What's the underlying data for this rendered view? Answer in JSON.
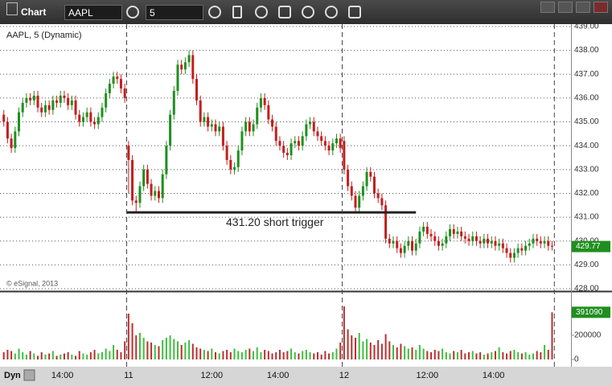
{
  "toolbar": {
    "title": "Chart",
    "symbol": "AAPL",
    "interval": "5"
  },
  "footer": {
    "mode": "Dyn"
  },
  "chart_data": [
    {
      "type": "candlestick",
      "title": "AAPL, 5 (Dynamic)",
      "credit": "© eSignal, 2013",
      "up_color": "#1f8f1f",
      "down_color": "#c41e1e",
      "xlim": [
        -1,
        150
      ],
      "ylim": [
        427.9,
        439.1
      ],
      "grid": true,
      "yticks": [
        {
          "value": 439,
          "label": "439.00"
        },
        {
          "value": 438,
          "label": "438.00"
        },
        {
          "value": 437,
          "label": "437.00"
        },
        {
          "value": 436,
          "label": "436.00"
        },
        {
          "value": 435,
          "label": "435.00"
        },
        {
          "value": 434,
          "label": "434.00"
        },
        {
          "value": 433,
          "label": "433.00"
        },
        {
          "value": 432,
          "label": "432.00"
        },
        {
          "value": 431,
          "label": "431.00"
        },
        {
          "value": 430,
          "label": "430.00"
        },
        {
          "value": 429,
          "label": "429.00"
        },
        {
          "value": 428,
          "label": "428.00"
        }
      ],
      "annotations": [
        {
          "text": "431.20 short trigger",
          "value": 431.2
        }
      ],
      "open": [
        435.3,
        435.0,
        434.3,
        433.9,
        434.6,
        435.4,
        435.8,
        436.0,
        435.9,
        436.1,
        435.6,
        435.4,
        435.7,
        435.5,
        435.9,
        435.8,
        436.1,
        436.0,
        435.7,
        435.9,
        435.3,
        435.0,
        435.2,
        435.4,
        435.0,
        434.9,
        435.2,
        435.6,
        436.2,
        436.6,
        436.9,
        436.8,
        436.4,
        434.0,
        433.4,
        431.7,
        431.6,
        432.3,
        433.0,
        432.4,
        431.9,
        432.1,
        431.8,
        432.8,
        434.0,
        435.3,
        436.3,
        437.4,
        437.2,
        437.5,
        437.8,
        436.8,
        435.9,
        435.0,
        435.2,
        434.8,
        434.9,
        434.6,
        434.8,
        434.0,
        433.4,
        433.0,
        433.1,
        433.8,
        434.6,
        435.0,
        434.6,
        434.9,
        435.6,
        436.0,
        435.7,
        435.1,
        434.8,
        434.2,
        434.0,
        433.7,
        433.6,
        434.1,
        434.2,
        434.0,
        434.4,
        434.9,
        435.0,
        434.6,
        434.4,
        434.2,
        434.0,
        433.8,
        434.1,
        434.3,
        434.2,
        433.0,
        432.3,
        431.9,
        431.4,
        431.9,
        432.3,
        432.9,
        432.7,
        432.0,
        431.8,
        431.5,
        430.1,
        429.9,
        430.0,
        429.7,
        429.5,
        429.8,
        430.0,
        429.6,
        429.9,
        430.4,
        430.6,
        430.3,
        430.2,
        430.0,
        429.8,
        429.9,
        430.2,
        430.5,
        430.3,
        430.4,
        430.2,
        430.1,
        430.0,
        430.2,
        430.0,
        429.9,
        430.1,
        429.9,
        430.0,
        429.8,
        429.9,
        429.7,
        429.5,
        429.3,
        429.5,
        429.7,
        429.6,
        429.8,
        429.9,
        430.1,
        430.0,
        429.9,
        430.0,
        429.8
      ],
      "high": [
        435.5,
        435.2,
        434.5,
        434.8,
        435.6,
        436.0,
        436.2,
        436.2,
        436.3,
        436.3,
        435.8,
        435.9,
        435.9,
        436.1,
        436.1,
        436.3,
        436.3,
        436.2,
        436.1,
        436.1,
        435.5,
        435.4,
        435.6,
        435.6,
        435.2,
        435.4,
        435.8,
        436.4,
        436.8,
        437.1,
        437.1,
        437.0,
        436.6,
        434.2,
        433.6,
        431.9,
        432.5,
        433.2,
        433.2,
        432.6,
        432.3,
        432.3,
        433.0,
        434.2,
        435.5,
        436.5,
        437.6,
        437.6,
        437.7,
        438.0,
        438.0,
        437.0,
        436.1,
        435.4,
        435.4,
        435.1,
        435.1,
        435.0,
        435.0,
        434.2,
        433.6,
        433.3,
        434.0,
        434.8,
        435.2,
        435.2,
        435.1,
        435.8,
        436.2,
        436.2,
        435.9,
        435.3,
        435.0,
        434.4,
        434.2,
        433.9,
        434.3,
        434.4,
        434.4,
        434.6,
        435.1,
        435.2,
        435.2,
        434.8,
        434.6,
        434.4,
        434.2,
        434.3,
        434.5,
        434.5,
        434.4,
        433.2,
        432.5,
        432.1,
        432.1,
        432.5,
        433.1,
        433.1,
        432.9,
        432.2,
        432.0,
        431.7,
        430.3,
        430.2,
        430.2,
        429.9,
        430.0,
        430.2,
        430.2,
        430.1,
        430.6,
        430.8,
        430.8,
        430.5,
        430.4,
        430.2,
        430.1,
        430.4,
        430.7,
        430.7,
        430.6,
        430.6,
        430.4,
        430.3,
        430.4,
        430.4,
        430.2,
        430.3,
        430.3,
        430.2,
        430.2,
        430.1,
        430.1,
        429.9,
        429.7,
        429.7,
        429.9,
        429.9,
        430.0,
        430.1,
        430.3,
        430.3,
        430.2,
        430.2,
        430.2,
        430.0
      ],
      "low": [
        434.8,
        434.1,
        433.7,
        433.7,
        434.4,
        435.2,
        435.6,
        435.7,
        435.7,
        435.4,
        435.2,
        435.2,
        435.3,
        435.3,
        435.6,
        435.6,
        435.8,
        435.5,
        435.5,
        435.1,
        434.8,
        434.8,
        435.0,
        434.8,
        434.7,
        434.7,
        435.0,
        435.4,
        436.0,
        436.4,
        436.6,
        436.2,
        435.8,
        432.0,
        431.5,
        431.2,
        431.4,
        432.1,
        432.2,
        431.7,
        431.7,
        431.6,
        431.6,
        432.6,
        433.8,
        435.1,
        436.1,
        437.0,
        437.0,
        437.3,
        436.6,
        435.7,
        434.8,
        434.8,
        434.6,
        434.6,
        434.4,
        434.4,
        433.8,
        433.2,
        432.8,
        432.8,
        432.9,
        433.6,
        434.4,
        434.4,
        434.4,
        434.7,
        435.4,
        435.5,
        434.9,
        434.6,
        434.0,
        433.8,
        433.5,
        433.4,
        433.4,
        433.9,
        433.8,
        433.8,
        434.2,
        434.7,
        434.4,
        434.2,
        434.0,
        433.8,
        433.6,
        433.6,
        433.9,
        433.7,
        432.8,
        432.1,
        431.7,
        431.2,
        431.2,
        431.7,
        432.1,
        432.5,
        431.8,
        431.6,
        431.3,
        429.9,
        429.7,
        429.7,
        429.5,
        429.3,
        429.3,
        429.6,
        429.4,
        429.4,
        429.7,
        430.2,
        430.1,
        430.0,
        429.8,
        429.6,
        429.6,
        429.7,
        430.0,
        430.1,
        430.1,
        430.0,
        429.9,
        429.8,
        429.8,
        429.8,
        429.7,
        429.7,
        429.7,
        429.7,
        429.6,
        429.6,
        429.5,
        429.3,
        429.1,
        429.1,
        429.3,
        429.4,
        429.4,
        429.6,
        429.7,
        429.8,
        429.7,
        429.7,
        429.6,
        429.6
      ],
      "close": [
        435.0,
        434.3,
        433.9,
        434.6,
        435.4,
        435.8,
        436.0,
        435.9,
        436.1,
        435.6,
        435.4,
        435.7,
        435.5,
        435.9,
        435.8,
        436.1,
        436.0,
        435.7,
        435.9,
        435.3,
        435.0,
        435.2,
        435.4,
        435.0,
        434.9,
        435.2,
        435.6,
        436.2,
        436.6,
        436.9,
        436.8,
        436.4,
        436.0,
        433.4,
        431.7,
        431.6,
        432.3,
        433.0,
        432.4,
        431.9,
        432.1,
        431.8,
        432.8,
        434.0,
        435.3,
        436.3,
        437.4,
        437.2,
        437.5,
        437.8,
        436.8,
        435.9,
        435.0,
        435.2,
        434.8,
        434.9,
        434.6,
        434.8,
        434.0,
        433.4,
        433.0,
        433.1,
        433.8,
        434.6,
        435.0,
        434.6,
        434.9,
        435.6,
        436.0,
        435.7,
        435.1,
        434.8,
        434.2,
        434.0,
        433.7,
        433.6,
        434.1,
        434.2,
        434.0,
        434.4,
        434.9,
        435.0,
        434.6,
        434.4,
        434.2,
        434.0,
        433.8,
        434.1,
        434.3,
        433.9,
        433.0,
        432.3,
        431.9,
        431.4,
        431.9,
        432.3,
        432.9,
        432.7,
        432.0,
        431.8,
        431.5,
        430.1,
        429.9,
        430.0,
        429.7,
        429.5,
        429.8,
        430.0,
        429.6,
        429.9,
        430.4,
        430.6,
        430.3,
        430.2,
        430.0,
        429.8,
        429.9,
        430.2,
        430.5,
        430.3,
        430.4,
        430.2,
        430.1,
        430.0,
        430.2,
        430.0,
        429.9,
        430.1,
        429.9,
        430.0,
        429.8,
        429.9,
        429.7,
        429.5,
        429.3,
        429.5,
        429.7,
        429.6,
        429.8,
        429.9,
        430.1,
        430.0,
        429.9,
        430.0,
        429.8,
        429.77
      ]
    },
    {
      "type": "bar",
      "xlim": [
        -1,
        150
      ],
      "ylim": [
        0,
        560000
      ],
      "yticks": [
        0,
        200000
      ],
      "xticks": [
        {
          "value": 15.5,
          "label": "14:00"
        },
        {
          "value": 33,
          "label": "11"
        },
        {
          "value": 55,
          "label": "12:00"
        },
        {
          "value": 72.5,
          "label": "14:00"
        },
        {
          "value": 90,
          "label": "12"
        },
        {
          "value": 112,
          "label": "12:00"
        },
        {
          "value": 129.5,
          "label": "14:00"
        }
      ],
      "values": [
        60000,
        80000,
        70000,
        50000,
        90000,
        60000,
        40000,
        70000,
        50000,
        30000,
        60000,
        40000,
        50000,
        70000,
        30000,
        40000,
        50000,
        60000,
        40000,
        30000,
        70000,
        50000,
        40000,
        60000,
        80000,
        50000,
        60000,
        90000,
        70000,
        120000,
        80000,
        60000,
        150000,
        380000,
        300000,
        200000,
        220000,
        180000,
        150000,
        140000,
        120000,
        110000,
        160000,
        180000,
        200000,
        170000,
        150000,
        120000,
        140000,
        160000,
        130000,
        100000,
        90000,
        80000,
        70000,
        90000,
        60000,
        50000,
        70000,
        80000,
        60000,
        90000,
        70000,
        60000,
        80000,
        90000,
        70000,
        100000,
        60000,
        80000,
        70000,
        50000,
        60000,
        80000,
        60000,
        70000,
        90000,
        60000,
        50000,
        70000,
        80000,
        60000,
        50000,
        60000,
        40000,
        70000,
        50000,
        60000,
        90000,
        140000,
        440000,
        250000,
        200000,
        180000,
        220000,
        150000,
        170000,
        140000,
        120000,
        160000,
        130000,
        210000,
        150000,
        120000,
        100000,
        130000,
        110000,
        90000,
        100000,
        80000,
        120000,
        90000,
        70000,
        60000,
        80000,
        70000,
        90000,
        60000,
        50000,
        70000,
        60000,
        80000,
        50000,
        60000,
        70000,
        50000,
        60000,
        40000,
        50000,
        60000,
        70000,
        100000,
        60000,
        50000,
        70000,
        80000,
        60000,
        50000,
        60000,
        40000,
        50000,
        70000,
        60000,
        120000,
        80000,
        391090
      ]
    }
  ]
}
